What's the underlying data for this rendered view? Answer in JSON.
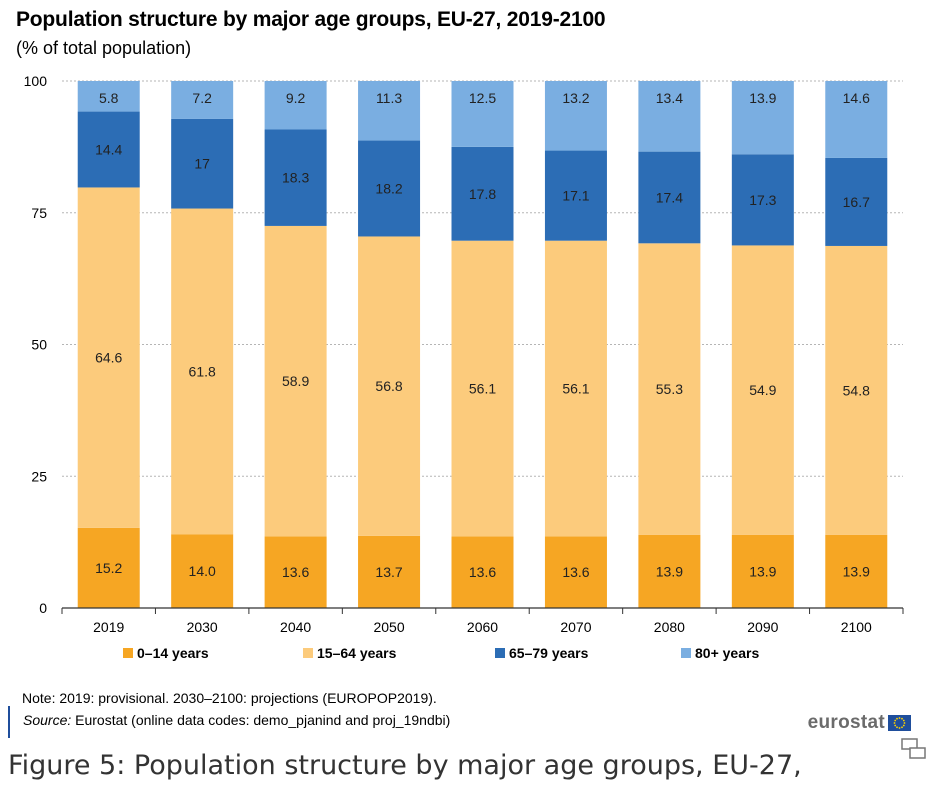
{
  "chart_data": {
    "type": "bar",
    "stacked": true,
    "title": "Population structure by major age groups, EU-27, 2019-2100",
    "subtitle": "(% of total population)",
    "categories": [
      "2019",
      "2030",
      "2040",
      "2050",
      "2060",
      "2070",
      "2080",
      "2090",
      "2100"
    ],
    "series": [
      {
        "name": "0–14 years",
        "color": "#f6a623",
        "values": [
          15.2,
          14.0,
          13.6,
          13.7,
          13.6,
          13.6,
          13.9,
          13.9,
          13.9
        ],
        "labels": [
          "15.2",
          "14.0",
          "13.6",
          "13.7",
          "13.6",
          "13.6",
          "13.9",
          "13.9",
          "13.9"
        ]
      },
      {
        "name": "15–64 years",
        "color": "#fccb7c",
        "values": [
          64.6,
          61.8,
          58.9,
          56.8,
          56.1,
          56.1,
          55.3,
          54.9,
          54.8
        ],
        "labels": [
          "64.6",
          "61.8",
          "58.9",
          "56.8",
          "56.1",
          "56.1",
          "55.3",
          "54.9",
          "54.8"
        ]
      },
      {
        "name": "65–79 years",
        "color": "#2c6db5",
        "values": [
          14.4,
          17,
          18.3,
          18.2,
          17.8,
          17.1,
          17.4,
          17.3,
          16.7
        ],
        "labels": [
          "14.4",
          "17",
          "18.3",
          "18.2",
          "17.8",
          "17.1",
          "17.4",
          "17.3",
          "16.7"
        ]
      },
      {
        "name": "80+ years",
        "color": "#7aaee1",
        "values": [
          5.8,
          7.2,
          9.2,
          11.3,
          12.5,
          13.2,
          13.4,
          13.9,
          14.6
        ],
        "labels": [
          "5.8",
          "7.2",
          "9.2",
          "11.3",
          "12.5",
          "13.2",
          "13.4",
          "13.9",
          "14.6"
        ]
      }
    ],
    "ylim": [
      0,
      100
    ],
    "yticks": [
      0,
      25,
      50,
      75,
      100
    ],
    "ytick_labels": [
      "0",
      "25",
      "50",
      "75",
      "100"
    ],
    "xlabel": "",
    "ylabel": "",
    "grid": true,
    "legend_position": "bottom"
  },
  "note": "Note: 2019: provisional. 2030–2100: projections (EUROPOP2019).",
  "source": {
    "label": "Source:",
    "text": " Eurostat (online data codes: demo_pjanind and proj_19ndbi)"
  },
  "logo_text": "eurostat",
  "caption": "Figure 5: Population structure by major age groups, EU-27,",
  "icons": {
    "flag": "eu-flag-icon",
    "expand": "expand-icon"
  }
}
